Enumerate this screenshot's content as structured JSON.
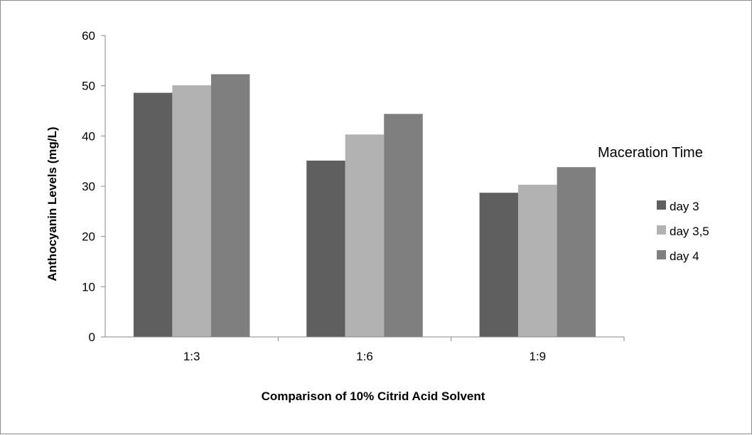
{
  "chart_data": {
    "type": "bar",
    "categories": [
      "1:3",
      "1:6",
      "1:9"
    ],
    "series": [
      {
        "name": "day 3",
        "values": [
          48.6,
          35.1,
          28.7
        ],
        "color": "#5f5f5f"
      },
      {
        "name": "day 3,5",
        "values": [
          50.1,
          40.3,
          30.3
        ],
        "color": "#b2b2b2"
      },
      {
        "name": "day 4",
        "values": [
          52.3,
          44.4,
          33.8
        ],
        "color": "#7f7f7f"
      }
    ],
    "xlabel": "Comparison of 10% Citrid Acid Solvent",
    "ylabel": "Anthocyanin Levels (mg/L)",
    "ylim": [
      0,
      60
    ],
    "yticks": [
      "0",
      "10",
      "20",
      "30",
      "40",
      "50",
      "60"
    ],
    "legend": {
      "title": "Maceration Time",
      "position": "right"
    },
    "grid": false
  }
}
